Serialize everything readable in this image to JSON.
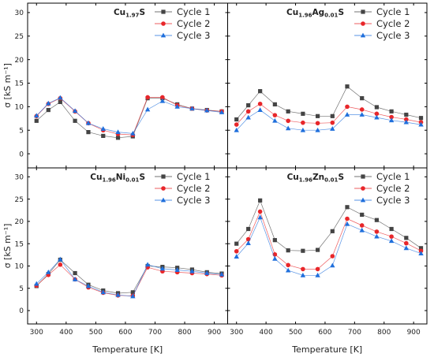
{
  "chart_data": [
    {
      "type": "line",
      "title_main": "Cu",
      "title_sub": "1.97",
      "title_tail": "S",
      "x": [
        300,
        340,
        380,
        430,
        475,
        525,
        575,
        625,
        675,
        725,
        775,
        825,
        875,
        925
      ],
      "series": [
        {
          "name": "Cycle 1",
          "values": [
            7.0,
            9.3,
            11.0,
            7.0,
            4.6,
            3.8,
            3.4,
            3.7,
            11.8,
            11.8,
            10.5,
            9.6,
            9.3,
            9.0
          ]
        },
        {
          "name": "Cycle 2",
          "values": [
            8.0,
            10.6,
            11.8,
            9.0,
            6.5,
            5.0,
            4.2,
            4.0,
            12.0,
            12.0,
            10.3,
            9.6,
            9.2,
            9.0
          ]
        },
        {
          "name": "Cycle 3",
          "values": [
            8.1,
            10.7,
            11.9,
            9.1,
            6.5,
            5.3,
            4.6,
            4.3,
            9.4,
            11.2,
            10.0,
            9.6,
            9.2,
            8.8
          ]
        }
      ],
      "ylabel": "σ  [kS m⁻¹]",
      "xlabel": ""
    },
    {
      "type": "line",
      "title_main": "Cu",
      "title_sub": "1.96",
      "title_tail": "Ag",
      "title_sub2": "0.01",
      "title_tail2": "S",
      "x": [
        300,
        340,
        380,
        430,
        475,
        525,
        575,
        625,
        675,
        725,
        775,
        825,
        875,
        925
      ],
      "series": [
        {
          "name": "Cycle 1",
          "values": [
            7.3,
            10.3,
            13.3,
            10.5,
            9.0,
            8.5,
            8.0,
            8.0,
            14.3,
            11.8,
            9.9,
            9.0,
            8.3,
            7.6
          ]
        },
        {
          "name": "Cycle 2",
          "values": [
            6.2,
            9.0,
            10.6,
            8.2,
            7.0,
            6.6,
            6.5,
            6.6,
            10.0,
            9.4,
            8.5,
            7.8,
            7.3,
            6.7
          ]
        },
        {
          "name": "Cycle 3",
          "values": [
            5.0,
            7.7,
            9.3,
            7.0,
            5.4,
            5.0,
            5.0,
            5.3,
            8.3,
            8.3,
            7.7,
            7.1,
            6.7,
            6.2
          ]
        }
      ]
    },
    {
      "type": "line",
      "title_main": "Cu",
      "title_sub": "1.96",
      "title_tail": "Ni",
      "title_sub2": "0.01",
      "title_tail2": "S",
      "x": [
        300,
        340,
        380,
        430,
        475,
        525,
        575,
        625,
        675,
        725,
        775,
        825,
        875,
        925
      ],
      "series": [
        {
          "name": "Cycle 1",
          "values": [
            5.5,
            8.2,
            11.4,
            8.4,
            5.8,
            4.5,
            3.9,
            4.1,
            10.0,
            9.8,
            9.6,
            9.2,
            8.6,
            8.3
          ]
        },
        {
          "name": "Cycle 2",
          "values": [
            5.6,
            8.0,
            10.3,
            7.0,
            5.2,
            4.0,
            3.4,
            3.3,
            9.7,
            8.8,
            8.6,
            8.4,
            8.2,
            7.9
          ]
        },
        {
          "name": "Cycle 3",
          "values": [
            6.0,
            8.6,
            11.5,
            7.0,
            5.5,
            4.1,
            3.5,
            3.2,
            10.3,
            9.4,
            9.1,
            8.8,
            8.4,
            8.1
          ]
        }
      ],
      "ylabel": "σ  [kS m⁻¹]",
      "xlabel": "Temperature [K]"
    },
    {
      "type": "line",
      "title_main": "Cu",
      "title_sub": "1.96",
      "title_tail": "Zn",
      "title_sub2": "0.01",
      "title_tail2": "S",
      "x": [
        300,
        340,
        380,
        430,
        475,
        525,
        575,
        625,
        675,
        725,
        775,
        825,
        875,
        925
      ],
      "series": [
        {
          "name": "Cycle 1",
          "values": [
            15.0,
            18.3,
            24.7,
            15.8,
            13.5,
            13.4,
            13.6,
            17.8,
            23.2,
            21.5,
            20.3,
            18.3,
            16.3,
            14.0
          ]
        },
        {
          "name": "Cycle 2",
          "values": [
            13.3,
            16.0,
            22.2,
            12.6,
            10.2,
            9.3,
            9.3,
            12.2,
            20.6,
            19.1,
            17.7,
            16.6,
            15.1,
            13.4
          ]
        },
        {
          "name": "Cycle 3",
          "values": [
            12.1,
            15.1,
            20.9,
            11.6,
            9.0,
            7.9,
            7.9,
            10.1,
            19.4,
            18.0,
            16.6,
            15.6,
            14.0,
            12.8
          ]
        }
      ],
      "xlabel": "Temperature [K]"
    }
  ],
  "axes": {
    "xlim": [
      270,
      945
    ],
    "ylim": [
      -3,
      32
    ],
    "xticks": [
      300,
      400,
      500,
      600,
      700,
      800,
      900
    ],
    "yticks": [
      0,
      5,
      10,
      15,
      20,
      25,
      30
    ]
  },
  "legend": {
    "position": "top-right",
    "entries": [
      "Cycle 1",
      "Cycle 2",
      "Cycle 3"
    ]
  },
  "colors": {
    "Cycle 1": "#444444",
    "Cycle 2": "#e8262a",
    "Cycle 3": "#1f6fdc",
    "axis": "#000000"
  },
  "markers": {
    "Cycle 1": "square",
    "Cycle 2": "circle",
    "Cycle 3": "triangle"
  }
}
